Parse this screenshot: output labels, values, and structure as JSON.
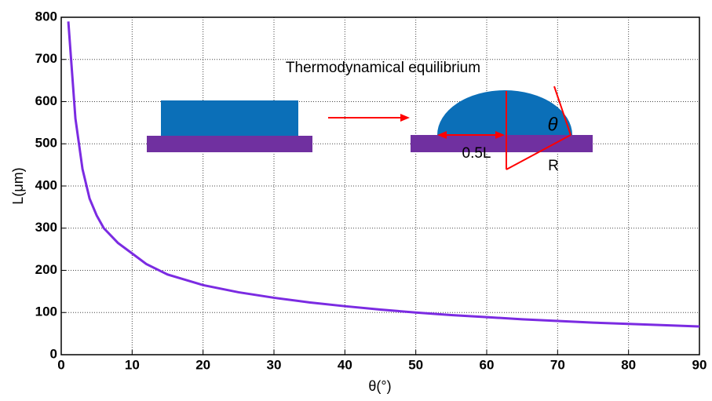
{
  "chart_data": {
    "type": "line",
    "x_label": "θ(°)",
    "y_label": "L(μm)",
    "annotations": [
      "Thermodynamical equilibrium",
      "0.5L",
      "R",
      "θ"
    ],
    "series": [
      {
        "color": "#7b2be2",
        "x": [
          1,
          2,
          3,
          4,
          5,
          6,
          8,
          10,
          12,
          15,
          20,
          25,
          30,
          35,
          40,
          45,
          50,
          55,
          60,
          65,
          70,
          75,
          80,
          85,
          90
        ],
        "values": [
          790,
          560,
          440,
          370,
          330,
          300,
          265,
          240,
          215,
          190,
          165,
          148,
          135,
          124,
          115,
          107,
          100,
          94,
          89,
          84,
          80,
          76,
          73,
          70,
          67
        ]
      }
    ],
    "xlim": [
      0,
      90
    ],
    "xticks": [
      0,
      10,
      20,
      30,
      40,
      50,
      60,
      70,
      80,
      90
    ],
    "ylim": [
      0,
      800
    ],
    "yticks": [
      0,
      100,
      200,
      300,
      400,
      500,
      600,
      700,
      800
    ],
    "grid": true
  }
}
